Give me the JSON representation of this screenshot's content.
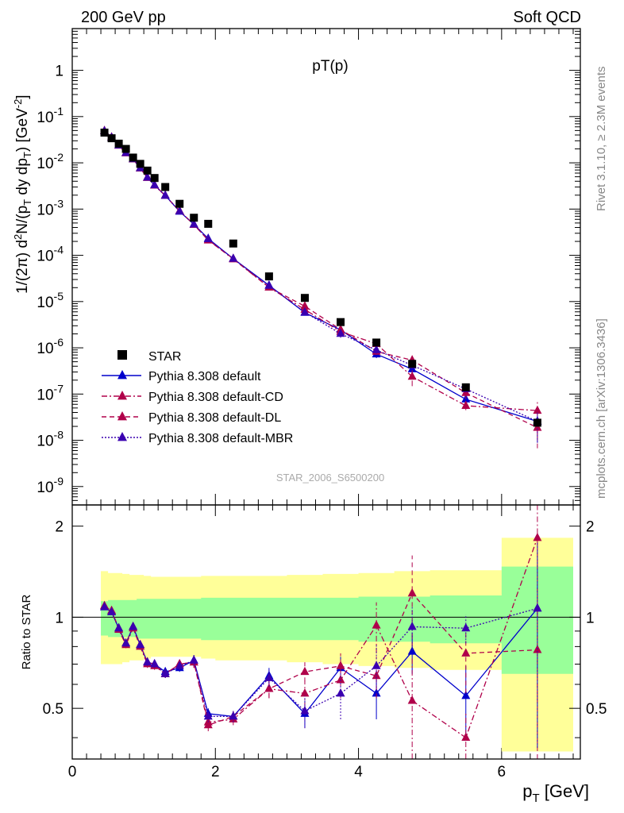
{
  "header": {
    "left": "200 GeV pp",
    "right": "Soft QCD"
  },
  "side_labels": {
    "rivet": "Rivet 3.1.10, ≥ 2.3M events",
    "mcplots": "mcplots.cern.ch [arXiv:1306.3436]"
  },
  "colors": {
    "star": "#000000",
    "default": "#0000cc",
    "cd": "#b0004a",
    "dl": "#b0004a",
    "mbr": "#3a00b0",
    "band_inner": "#99ff99",
    "band_outer": "#ffff99"
  },
  "chart_data": {
    "type": "scatter",
    "title": "pT(p)",
    "watermark": "STAR_2006_S6500200",
    "xlabel": "p_T [GeV]",
    "ylabel": "1/(2π) d²N/(p_T dy dp_T) [GeV⁻²]",
    "ratio_ylabel": "Ratio to STAR",
    "xlim": [
      0,
      7.1
    ],
    "ylim": [
      4e-10,
      8
    ],
    "yscale": "log",
    "ratio_ylim": [
      0.34,
      2.35
    ],
    "ratio_scale": "log",
    "x_ticks": [
      0,
      2,
      4,
      6
    ],
    "y_ticks": [
      1e-09,
      1e-08,
      1e-07,
      1e-06,
      1e-05,
      0.0001,
      0.001,
      0.01,
      0.1,
      1
    ],
    "y_tick_labels": [
      "10^-9",
      "10^-8",
      "10^-7",
      "10^-6",
      "10^-5",
      "10^-4",
      "10^-3",
      "10^-2",
      "10^-1",
      "1"
    ],
    "ratio_ticks": [
      0.5,
      1,
      2
    ],
    "ratio_tick_labels": [
      "0.5",
      "1",
      "2"
    ],
    "legend_position": "bottom-left",
    "star": {
      "name": "STAR",
      "x": [
        0.45,
        0.55,
        0.65,
        0.75,
        0.85,
        0.95,
        1.05,
        1.15,
        1.3,
        1.5,
        1.7,
        1.9,
        2.25,
        2.75,
        3.25,
        3.75,
        4.25,
        4.75,
        5.5,
        6.5
      ],
      "y": [
        0.045,
        0.034,
        0.026,
        0.02,
        0.013,
        0.0095,
        0.0068,
        0.0047,
        0.003,
        0.0013,
        0.00065,
        0.00048,
        0.00018,
        3.5e-05,
        1.2e-05,
        3.6e-06,
        1.3e-06,
        4.5e-07,
        1.4e-07,
        2.4e-08
      ]
    },
    "bands": {
      "x_edges": [
        0.4,
        0.5,
        0.6,
        0.7,
        0.8,
        0.9,
        1.0,
        1.1,
        1.2,
        1.4,
        1.6,
        1.8,
        2.0,
        2.5,
        3.0,
        3.5,
        4.0,
        4.5,
        5.0,
        6.0,
        7.0
      ],
      "inner_lo": [
        0.87,
        0.86,
        0.86,
        0.86,
        0.86,
        0.85,
        0.85,
        0.85,
        0.85,
        0.85,
        0.85,
        0.84,
        0.84,
        0.84,
        0.84,
        0.84,
        0.83,
        0.83,
        0.82,
        0.65
      ],
      "inner_hi": [
        1.13,
        1.14,
        1.14,
        1.14,
        1.14,
        1.15,
        1.15,
        1.15,
        1.15,
        1.15,
        1.15,
        1.16,
        1.16,
        1.16,
        1.16,
        1.16,
        1.17,
        1.17,
        1.18,
        1.47
      ],
      "outer_lo": [
        0.7,
        0.7,
        0.7,
        0.71,
        0.72,
        0.72,
        0.73,
        0.74,
        0.74,
        0.74,
        0.74,
        0.73,
        0.72,
        0.72,
        0.71,
        0.7,
        0.69,
        0.68,
        0.67,
        0.36
      ],
      "outer_hi": [
        1.42,
        1.4,
        1.4,
        1.39,
        1.38,
        1.38,
        1.37,
        1.36,
        1.36,
        1.36,
        1.36,
        1.37,
        1.37,
        1.37,
        1.38,
        1.39,
        1.4,
        1.42,
        1.43,
        1.83
      ]
    },
    "series": [
      {
        "name": "Pythia 8.308 default",
        "key": "default",
        "style": "solid",
        "ratio": [
          1.08,
          1.04,
          0.92,
          0.82,
          0.93,
          0.81,
          0.71,
          0.7,
          0.66,
          0.68,
          0.72,
          0.48,
          0.47,
          0.64,
          0.48,
          0.68,
          0.56,
          0.77,
          0.55,
          1.07
        ],
        "ratio_err": [
          0.02,
          0.02,
          0.02,
          0.02,
          0.02,
          0.02,
          0.02,
          0.02,
          0.02,
          0.02,
          0.03,
          0.02,
          0.02,
          0.04,
          0.05,
          0.06,
          0.1,
          0.12,
          0.14,
          0.7
        ]
      },
      {
        "name": "Pythia 8.308 default-CD",
        "key": "cd",
        "style": "dashdot",
        "ratio": [
          1.09,
          1.05,
          0.91,
          0.81,
          0.92,
          0.8,
          0.7,
          0.69,
          0.65,
          0.7,
          0.71,
          0.45,
          0.46,
          0.58,
          0.56,
          0.62,
          0.94,
          0.53,
          0.4,
          1.83
        ],
        "ratio_err": [
          0.02,
          0.02,
          0.02,
          0.02,
          0.02,
          0.02,
          0.02,
          0.02,
          0.02,
          0.02,
          0.03,
          0.02,
          0.02,
          0.04,
          0.06,
          0.08,
          0.18,
          0.2,
          0.08,
          1.3
        ]
      },
      {
        "name": "Pythia 8.308 default-DL",
        "key": "dl",
        "style": "dashed",
        "ratio": [
          1.09,
          1.05,
          0.92,
          0.82,
          0.93,
          0.81,
          0.71,
          0.7,
          0.65,
          0.7,
          0.71,
          0.44,
          0.47,
          0.58,
          0.66,
          0.69,
          0.64,
          1.2,
          0.76,
          0.78
        ],
        "ratio_err": [
          0.02,
          0.02,
          0.02,
          0.02,
          0.02,
          0.02,
          0.02,
          0.02,
          0.02,
          0.02,
          0.03,
          0.02,
          0.02,
          0.04,
          0.05,
          0.07,
          0.1,
          0.4,
          0.2,
          0.5
        ]
      },
      {
        "name": "Pythia 8.308 default-MBR",
        "key": "mbr",
        "style": "dotted",
        "ratio": [
          1.08,
          1.04,
          0.92,
          0.82,
          0.93,
          0.81,
          0.71,
          0.7,
          0.65,
          0.69,
          0.72,
          0.47,
          0.47,
          0.63,
          0.49,
          0.56,
          0.69,
          0.93,
          0.92,
          1.07
        ],
        "ratio_err": [
          0.02,
          0.02,
          0.02,
          0.02,
          0.02,
          0.02,
          0.02,
          0.02,
          0.02,
          0.02,
          0.03,
          0.02,
          0.02,
          0.04,
          0.06,
          0.1,
          0.12,
          0.15,
          0.1,
          0.7
        ]
      }
    ]
  }
}
